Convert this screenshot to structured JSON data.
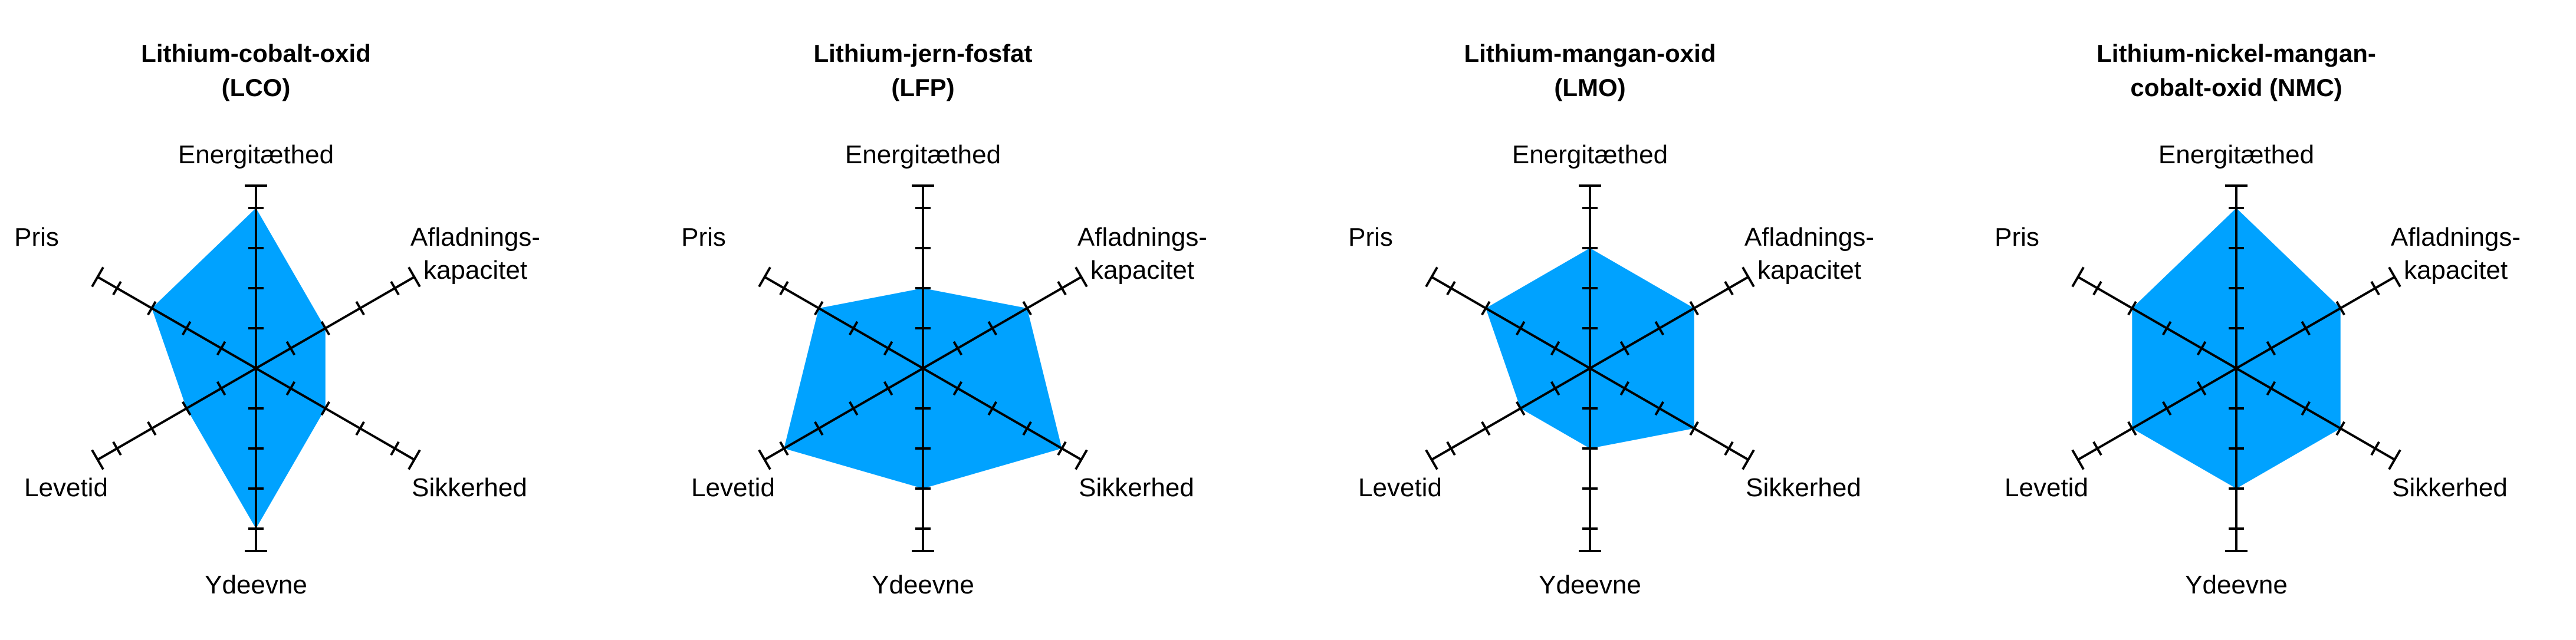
{
  "colors": {
    "fill": "#00a2ff",
    "axis": "#000000",
    "background": "#ffffff"
  },
  "chart_data": [
    {
      "type": "radar",
      "title_lines": [
        "Lithium-cobalt-oxid",
        "(LCO)"
      ],
      "axes": [
        {
          "label_lines": [
            "Energitæthed"
          ]
        },
        {
          "label_lines": [
            "Afladnings-",
            "kapacitet"
          ]
        },
        {
          "label_lines": [
            "Sikkerhed"
          ]
        },
        {
          "label_lines": [
            "Ydeevne"
          ]
        },
        {
          "label_lines": [
            "Levetid"
          ]
        },
        {
          "label_lines": [
            "Pris"
          ]
        }
      ],
      "values": [
        4,
        2,
        2,
        4,
        2,
        3
      ],
      "max": 4,
      "legend": false
    },
    {
      "type": "radar",
      "title_lines": [
        "Lithium-jern-fosfat",
        "(LFP)"
      ],
      "axes": [
        {
          "label_lines": [
            "Energitæthed"
          ]
        },
        {
          "label_lines": [
            "Afladnings-",
            "kapacitet"
          ]
        },
        {
          "label_lines": [
            "Sikkerhed"
          ]
        },
        {
          "label_lines": [
            "Ydeevne"
          ]
        },
        {
          "label_lines": [
            "Levetid"
          ]
        },
        {
          "label_lines": [
            "Pris"
          ]
        }
      ],
      "values": [
        2,
        3,
        4,
        3,
        4,
        3
      ],
      "max": 4,
      "legend": false
    },
    {
      "type": "radar",
      "title_lines": [
        "Lithium-mangan-oxid",
        "(LMO)"
      ],
      "axes": [
        {
          "label_lines": [
            "Energitæthed"
          ]
        },
        {
          "label_lines": [
            "Afladnings-",
            "kapacitet"
          ]
        },
        {
          "label_lines": [
            "Sikkerhed"
          ]
        },
        {
          "label_lines": [
            "Ydeevne"
          ]
        },
        {
          "label_lines": [
            "Levetid"
          ]
        },
        {
          "label_lines": [
            "Pris"
          ]
        }
      ],
      "values": [
        3,
        3,
        3,
        2,
        2,
        3
      ],
      "max": 4,
      "legend": false
    },
    {
      "type": "radar",
      "title_lines": [
        "Lithium-nickel-mangan-",
        "cobalt-oxid (NMC)"
      ],
      "axes": [
        {
          "label_lines": [
            "Energitæthed"
          ]
        },
        {
          "label_lines": [
            "Afladnings-",
            "kapacitet"
          ]
        },
        {
          "label_lines": [
            "Sikkerhed"
          ]
        },
        {
          "label_lines": [
            "Ydeevne"
          ]
        },
        {
          "label_lines": [
            "Levetid"
          ]
        },
        {
          "label_lines": [
            "Pris"
          ]
        }
      ],
      "values": [
        4,
        3,
        3,
        3,
        3,
        3
      ],
      "max": 4,
      "legend": false
    }
  ]
}
